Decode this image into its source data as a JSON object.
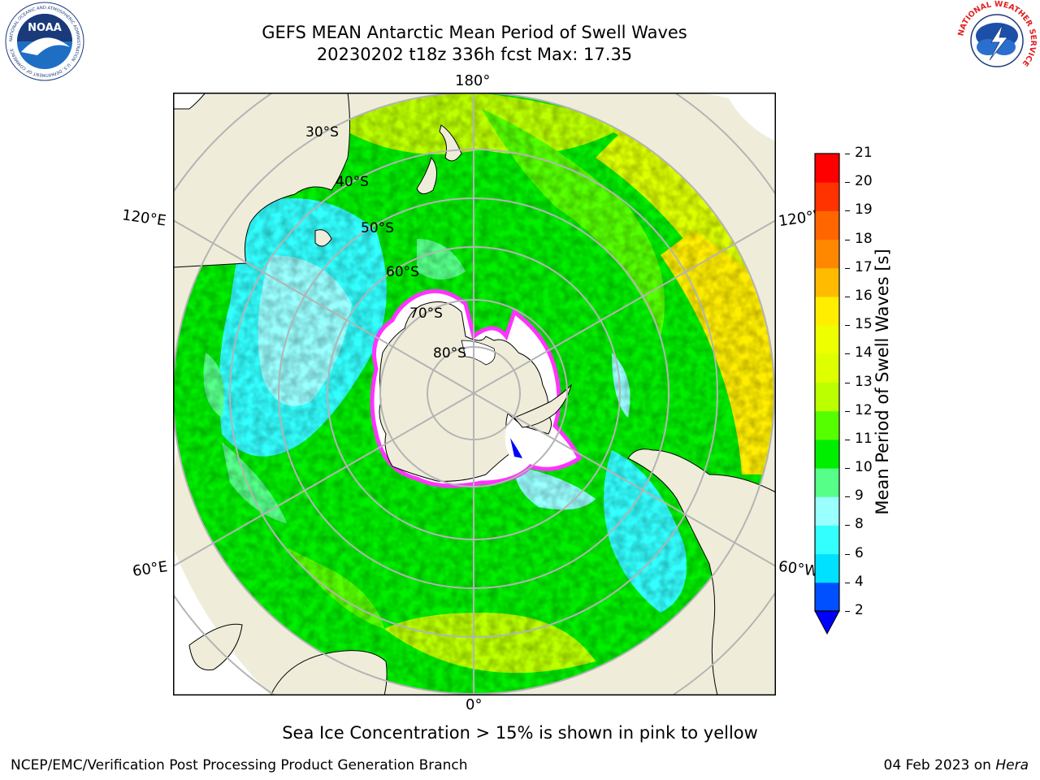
{
  "header": {
    "title_line1": "GEFS MEAN Antarctic Mean Period of Swell Waves",
    "title_line2": "20230202 t18z 336h fcst   Max: 17.35"
  },
  "logos": {
    "noaa_text": "NOAA",
    "noaa_ring_text": "NATIONAL OCEANIC AND ATMOSPHERIC ADMINISTRATION · U.S. DEPARTMENT OF COMMERCE",
    "nws_ring_text": "NATIONAL WEATHER SERVICE"
  },
  "map": {
    "longitude_labels": {
      "top": "180°",
      "bottom": "0°",
      "upper_left": "120°E",
      "lower_left": "60°E",
      "upper_right": "120°W",
      "lower_right": "60°W"
    },
    "latitude_labels": [
      "30°S",
      "40°S",
      "50°S",
      "60°S",
      "70°S",
      "80°S"
    ],
    "colors": {
      "land": "#efedda",
      "coastline": "#000000",
      "gridline": "#b4b4b4",
      "sea_ice_edge": "#ff33ff",
      "sea_ice_inner": "#ffffff"
    }
  },
  "colorbar": {
    "label": "Mean Period of Swell Waves [s]",
    "ticks": [
      "2",
      "4",
      "6",
      "8",
      "9",
      "10",
      "11",
      "12",
      "13",
      "14",
      "15",
      "16",
      "17",
      "18",
      "19",
      "20",
      "21"
    ],
    "colors": [
      "#0050ff",
      "#00e0ff",
      "#33ffff",
      "#99ffff",
      "#55ff88",
      "#00ee00",
      "#55ff00",
      "#bbff00",
      "#ddff00",
      "#eeff00",
      "#ffee00",
      "#ffbb00",
      "#ff8800",
      "#ff6600",
      "#ff3300",
      "#ff0000"
    ],
    "under_color": "#0000ff"
  },
  "footer": {
    "ice_note": "Sea Ice Concentration > 15% is shown in pink to yellow",
    "credit": "NCEP/EMC/Verification Post Processing Product Generation Branch",
    "date": "04 Feb 2023 on ",
    "machine": "Hera"
  }
}
